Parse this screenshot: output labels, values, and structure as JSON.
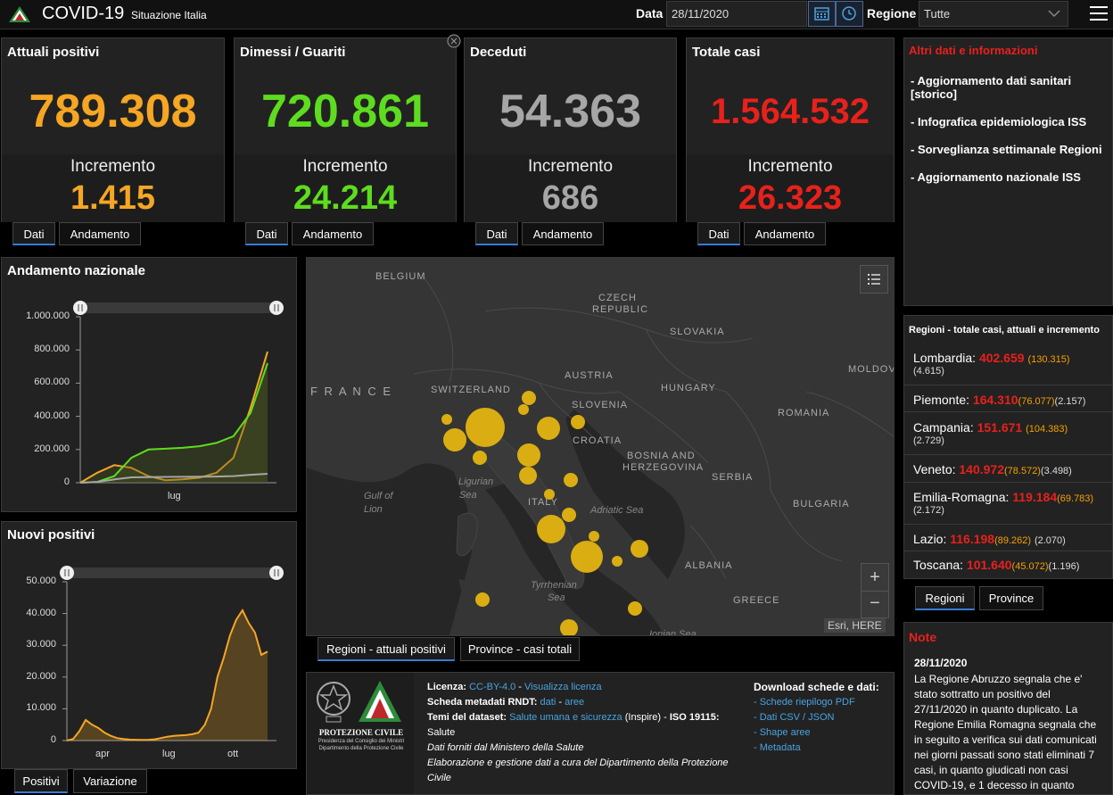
{
  "header": {
    "title": "COVID-19",
    "subtitle": "Situazione Italia",
    "date_label": "Data",
    "date_value": "28/11/2020",
    "region_label": "Regione",
    "region_value": "Tutte"
  },
  "cards": [
    {
      "title": "Attuali positivi",
      "value": "789.308",
      "inc_label": "Incremento",
      "inc": "1.415",
      "color": "#f5a623",
      "tabs": [
        "Dati",
        "Andamento"
      ]
    },
    {
      "title": "Dimessi / Guariti",
      "value": "720.861",
      "inc_label": "Incremento",
      "inc": "24.214",
      "color": "#5edc1f",
      "tabs": [
        "Dati",
        "Andamento"
      ]
    },
    {
      "title": "Deceduti",
      "value": "54.363",
      "inc_label": "Incremento",
      "inc": "686",
      "color": "#a6a6a6",
      "tabs": [
        "Dati",
        "Andamento"
      ]
    },
    {
      "title": "Totale casi",
      "value": "1.564.532",
      "inc_label": "Incremento",
      "inc": "26.323",
      "color": "#e7211c",
      "tabs": [
        "Dati",
        "Andamento"
      ]
    }
  ],
  "andamento": {
    "title": "Andamento nazionale",
    "chart_data": {
      "type": "line",
      "yticks": [
        "1.000.000",
        "800.000",
        "600.000",
        "400.000",
        "200.000",
        "0"
      ],
      "ylim": [
        0,
        1000000
      ],
      "xtick": "lug",
      "series": [
        {
          "color": "#f5a623",
          "values": [
            0,
            60000,
            106000,
            90000,
            40000,
            15000,
            20000,
            30000,
            60000,
            150000,
            450000,
            790000
          ]
        },
        {
          "color": "#5edc1f",
          "values": [
            0,
            5000,
            40000,
            150000,
            200000,
            205000,
            210000,
            220000,
            240000,
            280000,
            420000,
            720000
          ]
        },
        {
          "color": "#a6a6a6",
          "values": [
            0,
            5000,
            20000,
            32000,
            34000,
            35000,
            35500,
            36000,
            37000,
            40000,
            48000,
            54000
          ]
        }
      ]
    }
  },
  "nuovi": {
    "title": "Nuovi positivi",
    "chart_data": {
      "type": "area",
      "yticks": [
        "50.000",
        "40.000",
        "30.000",
        "20.000",
        "10.000",
        "0"
      ],
      "ylim": [
        0,
        50000
      ],
      "xticks": [
        "apr",
        "lug",
        "ott"
      ],
      "series": [
        {
          "color": "#f5a623",
          "values": [
            0,
            500,
            3000,
            6500,
            5000,
            4000,
            2500,
            1500,
            800,
            500,
            300,
            250,
            200,
            250,
            400,
            800,
            1200,
            1500,
            1600,
            1700,
            2000,
            2500,
            5000,
            10000,
            20000,
            26000,
            33000,
            38000,
            41000,
            37000,
            34000,
            27000,
            28000
          ]
        }
      ]
    },
    "tabs": [
      "Positivi",
      "Variazione"
    ]
  },
  "map": {
    "labels": {
      "belgium": "BELGIUM",
      "czech": "CZECH",
      "republic": "REPUBLIC",
      "slovakia": "SLOVAKIA",
      "austria": "AUSTRIA",
      "hungary": "HUNGARY",
      "moldova": "MOLDOV",
      "france": "F R A N C E",
      "switzerland": "SWITZERLAND",
      "slovenia": "SLOVENIA",
      "croatia": "CROATIA",
      "romania": "ROMANIA",
      "bosnia1": "BOSNIA AND",
      "bosnia2": "HERZEGOVINA",
      "serbia": "SERBIA",
      "bulgaria": "BULGARIA",
      "italy": "ITALY",
      "albania": "ALBANIA",
      "greece": "GREECE",
      "gulf1": "Gulf of",
      "gulf2": "Lion",
      "ligurian1": "Ligurian",
      "ligurian2": "Sea",
      "adriatic": "Adriatic Sea",
      "tyrr1": "Tyrrhenian",
      "tyrr2": "Sea",
      "ionian": "Ionian Sea"
    },
    "attribution": "Esri, HERE",
    "tabs": [
      "Regioni - attuali positivi",
      "Province - casi totali"
    ]
  },
  "altri": {
    "title": "Altri dati e informazioni",
    "items": [
      "- Aggiornamento dati sanitari [storico]",
      "- Infografica epidemiologica ISS",
      "- Sorveglianza settimanale Regioni",
      "- Aggiornamento nazionale ISS"
    ]
  },
  "regioni": {
    "title": "Regioni - totale casi, attuali e incremento",
    "rows": [
      {
        "name": "Lombardia:",
        "tot": "402.659",
        "att": "(130.315)",
        "inc": "(4.615)"
      },
      {
        "name": "Piemonte:",
        "tot": "164.310",
        "att": "(76.077)",
        "inc": "(2.157)"
      },
      {
        "name": "Campania:",
        "tot": "151.671",
        "att": "(104.383)",
        "inc": "(2.729)"
      },
      {
        "name": "Veneto:",
        "tot": "140.972",
        "att": "(78.572)",
        "inc": "(3.498)"
      },
      {
        "name": "Emilia-Romagna:",
        "tot": "119.184",
        "att": "(69.783)",
        "inc": "(2.172)"
      },
      {
        "name": "Lazio:",
        "tot": "116.198",
        "att": "(89.262)",
        "inc": "(2.070)"
      },
      {
        "name": "Toscana:",
        "tot": "101.640",
        "att": "(45.072)",
        "inc": "(1.196)"
      }
    ],
    "tabs": [
      "Regioni",
      "Province"
    ]
  },
  "nota": {
    "title": "Note",
    "date": "28/11/2020",
    "text": "La Regione Abruzzo segnala che e' stato sottratto un positivo del 27/11/2020 in quanto duplicato. La Regione Emilia Romagna segnala che in seguito a verifica sui dati comunicati nei giorni passati sono stati eliminati 7 casi, in quanto giudicati non casi COVID-19, e 1 decesso in quanto"
  },
  "info": {
    "logo_text1": "PROTEZIONE CIVILE",
    "logo_text2": "Presidenza del Consiglio dei Ministri",
    "logo_text3": "Dipartimento della Protezione Civile",
    "licenza_label": "Licenza:",
    "licenza_val": "CC-BY-4.0",
    "licenza_sep": " - ",
    "licenza_link": "Visualizza licenza",
    "rndt_label": "Scheda metadati RNDT:",
    "rndt_dati": "dati",
    "rndt_sep": " - ",
    "rndt_aree": "aree",
    "temi_label": "Temi del dataset:",
    "temi_val": "Salute umana e sicurezza",
    "temi_suffix": " (Inspire) - ",
    "iso_label": "ISO 19115:",
    "iso_val": "Salute",
    "line5": "Dati forniti dal Ministero della Salute",
    "line6": "Elaborazione e gestione dati a cura del Dipartimento della Protezione Civile",
    "download_title": "Download schede e dati:",
    "downloads": [
      "- Schede riepilogo PDF",
      "- Dati CSV / JSON",
      "- Shape aree",
      "- Metadata"
    ]
  }
}
